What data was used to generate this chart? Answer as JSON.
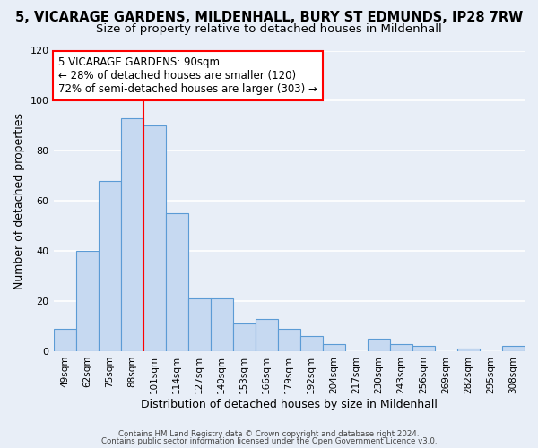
{
  "title": "5, VICARAGE GARDENS, MILDENHALL, BURY ST EDMUNDS, IP28 7RW",
  "subtitle": "Size of property relative to detached houses in Mildenhall",
  "xlabel": "Distribution of detached houses by size in Mildenhall",
  "ylabel": "Number of detached properties",
  "bar_labels": [
    "49sqm",
    "62sqm",
    "75sqm",
    "88sqm",
    "101sqm",
    "114sqm",
    "127sqm",
    "140sqm",
    "153sqm",
    "166sqm",
    "179sqm",
    "192sqm",
    "204sqm",
    "217sqm",
    "230sqm",
    "243sqm",
    "256sqm",
    "269sqm",
    "282sqm",
    "295sqm",
    "308sqm"
  ],
  "bar_values": [
    9,
    40,
    68,
    93,
    90,
    55,
    21,
    21,
    11,
    13,
    9,
    6,
    3,
    0,
    5,
    3,
    2,
    0,
    1,
    0,
    2
  ],
  "bar_color": "#c6d9f1",
  "bar_edge_color": "#5b9bd5",
  "vline_x": 3.5,
  "vline_color": "red",
  "ylim": [
    0,
    120
  ],
  "yticks": [
    0,
    20,
    40,
    60,
    80,
    100,
    120
  ],
  "annotation_title": "5 VICARAGE GARDENS: 90sqm",
  "annotation_line1": "← 28% of detached houses are smaller (120)",
  "annotation_line2": "72% of semi-detached houses are larger (303) →",
  "annotation_box_color": "#ffffff",
  "annotation_box_edge": "red",
  "footer1": "Contains HM Land Registry data © Crown copyright and database right 2024.",
  "footer2": "Contains public sector information licensed under the Open Government Licence v3.0.",
  "bg_color": "#e8eef7",
  "grid_color": "#ffffff",
  "title_fontsize": 10.5,
  "subtitle_fontsize": 9.5
}
